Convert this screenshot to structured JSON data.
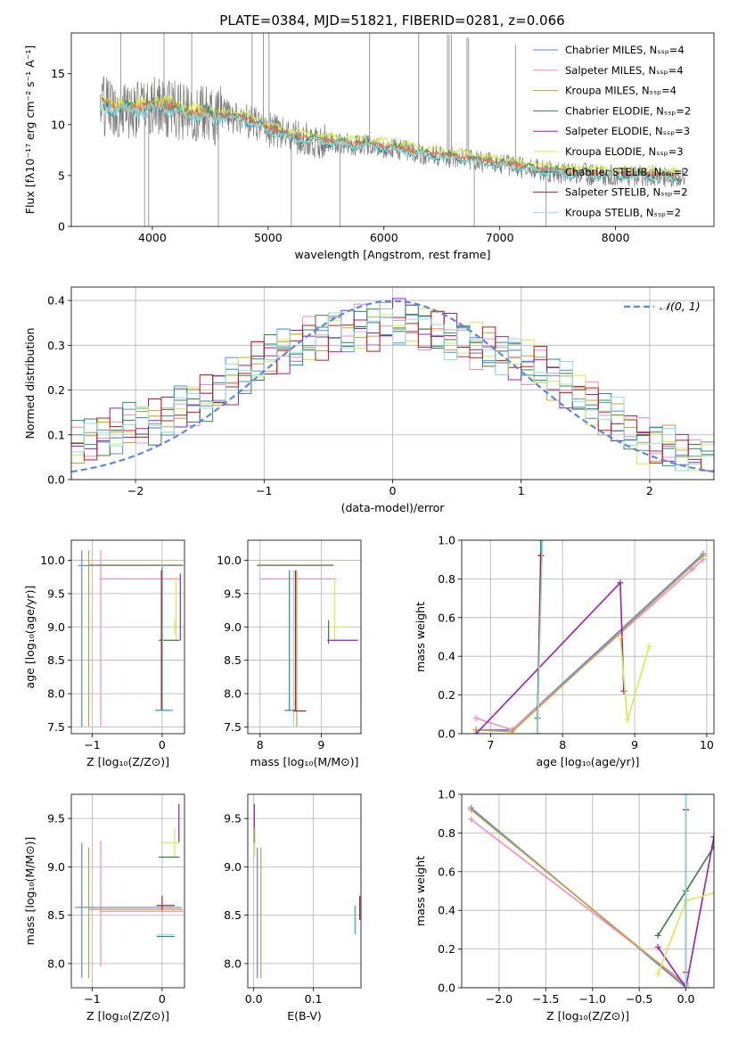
{
  "colors": {
    "chabrier_miles": "#5b86e5",
    "salpeter_miles": "#f08cc0",
    "kroupa_miles": "#c8a03c",
    "chabrier_elodie": "#3a7d44",
    "salpeter_elodie": "#9a1fb0",
    "kroupa_elodie": "#d4ec4e",
    "chabrier_stelib": "#2a8a8a",
    "salpeter_stelib": "#c01818",
    "kroupa_stelib": "#8fdde0",
    "data": "#7a7a7a",
    "orange": "#e8773a"
  },
  "chart_data": [
    {
      "id": "spectrum",
      "type": "line",
      "title": "PLATE=0384, MJD=51821, FIBERID=0281, z=0.066",
      "xlabel": "wavelength [Angstrom, rest frame]",
      "ylabel": "Flux [fλ10⁻¹⁷ erg cm⁻² s⁻¹ A⁻¹]",
      "xlim": [
        3300,
        8850
      ],
      "ylim": [
        0,
        19
      ],
      "xticks": [
        "4000",
        "5000",
        "6000",
        "7000",
        "8000"
      ],
      "yticks": [
        "0",
        "5",
        "10",
        "15"
      ],
      "legend_loc": "upper-right",
      "legend": [
        "Chabrier MILES, Nₛₛₚ=4",
        "Salpeter MILES, Nₛₛₚ=4",
        "Kroupa MILES, Nₛₛₚ=4",
        "Chabrier ELODIE, Nₛₛₚ=2",
        "Salpeter ELODIE, Nₛₛₚ=3",
        "Kroupa ELODIE, Nₛₛₚ=3",
        "Chabrier STELIB, Nₛₛₚ=2",
        "Salpeter STELIB, Nₛₛₚ=2",
        "Kroupa STELIB, Nₛₛₚ=2"
      ],
      "continuum": {
        "x": [
          3550,
          3700,
          3900,
          4100,
          4300,
          4500,
          4800,
          5000,
          5200,
          5500,
          5800,
          6000,
          6300,
          6600,
          6800,
          7000,
          7300,
          7600,
          8000,
          8300,
          8600
        ],
        "y": [
          12.0,
          11.5,
          11.5,
          11.8,
          11.0,
          11.0,
          10.5,
          9.5,
          8.8,
          8.3,
          8.0,
          7.8,
          7.2,
          6.8,
          6.4,
          6.1,
          5.6,
          5.2,
          5.0,
          5.0,
          4.7
        ]
      },
      "lines_up": [
        3727,
        4101,
        4340,
        4861,
        4959,
        5007,
        5876,
        6300,
        6548,
        6563,
        6583,
        6717,
        6731,
        7136
      ],
      "lines_down": [
        3933,
        3968,
        4570,
        5200,
        5620,
        6780,
        7400
      ]
    },
    {
      "id": "residuals",
      "type": "bar",
      "xlabel": "(data-model)/error",
      "ylabel": "Normed distribution",
      "xlim": [
        -2.5,
        2.5
      ],
      "ylim": [
        0,
        0.43
      ],
      "xticks": [
        "−2",
        "−1",
        "0",
        "1",
        "2"
      ],
      "yticks": [
        "0.0",
        "0.1",
        "0.2",
        "0.3",
        "0.4"
      ],
      "legend": [
        "𝒩(0, 1)"
      ],
      "legend_loc": "upper-right",
      "bin_edges": [
        -2.5,
        2.5
      ],
      "hist_base": [
        0.08,
        0.09,
        0.1,
        0.11,
        0.12,
        0.13,
        0.13,
        0.14,
        0.16,
        0.17,
        0.18,
        0.2,
        0.22,
        0.24,
        0.26,
        0.28,
        0.29,
        0.3,
        0.31,
        0.32,
        0.33,
        0.33,
        0.34,
        0.34,
        0.35,
        0.35,
        0.35,
        0.34,
        0.33,
        0.32,
        0.31,
        0.3,
        0.29,
        0.28,
        0.27,
        0.26,
        0.25,
        0.23,
        0.21,
        0.19,
        0.17,
        0.15,
        0.13,
        0.11,
        0.09,
        0.08,
        0.07,
        0.06,
        0.05,
        0.04
      ]
    },
    {
      "id": "age_vs_Z",
      "type": "scatter",
      "xlabel": "Z [log₁₀(Z/Z⊙)]",
      "ylabel": "age  [log₁₀(age/yr)]",
      "xlim": [
        -1.3,
        0.32
      ],
      "ylim": [
        7.4,
        10.3
      ],
      "xticks": [
        "−1",
        "0"
      ],
      "yticks": [
        "7.5",
        "8.0",
        "8.5",
        "9.0",
        "9.5",
        "10.0"
      ]
    },
    {
      "id": "age_vs_mass",
      "type": "scatter",
      "xlabel": "mass [log₁₀(M/M⊙)]",
      "xlim": [
        7.8,
        9.65
      ],
      "ylim": [
        7.4,
        10.3
      ],
      "xticks": [
        "8",
        "9"
      ],
      "yticks": [
        "7.5",
        "8.0",
        "8.5",
        "9.0",
        "9.5",
        "10.0"
      ]
    },
    {
      "id": "weight_vs_age",
      "type": "line",
      "xlabel": "age  [log₁₀(age/yr)]",
      "ylabel": "mass weight",
      "xlim": [
        6.6,
        10.1
      ],
      "ylim": [
        0,
        1
      ],
      "xticks": [
        "7",
        "8",
        "9",
        "10"
      ],
      "yticks": [
        "0.0",
        "0.2",
        "0.4",
        "0.6",
        "0.8",
        "1.0"
      ],
      "series": [
        {
          "name": "Chabrier MILES",
          "x": [
            6.8,
            7.3,
            9.95
          ],
          "y": [
            0.02,
            0.02,
            0.93
          ]
        },
        {
          "name": "Salpeter MILES",
          "x": [
            6.8,
            7.3,
            9.8,
            9.95
          ],
          "y": [
            0.08,
            0.02,
            0.85,
            0.9
          ]
        },
        {
          "name": "Kroupa MILES",
          "x": [
            6.8,
            7.3,
            9.95
          ],
          "y": [
            0.02,
            0.01,
            0.92
          ]
        },
        {
          "name": "Chabrier ELODIE",
          "x": [
            7.65,
            7.7
          ],
          "y": [
            0.08,
            0.92
          ]
        },
        {
          "name": "Salpeter ELODIE",
          "x": [
            6.8,
            8.8,
            8.85
          ],
          "y": [
            0.0,
            0.78,
            0.22
          ]
        },
        {
          "name": "Kroupa ELODIE",
          "x": [
            8.8,
            8.9,
            9.2
          ],
          "y": [
            0.5,
            0.07,
            0.45
          ]
        },
        {
          "name": "Chabrier STELIB",
          "x": [
            7.65,
            7.7
          ],
          "y": [
            0.0,
            1.0
          ]
        },
        {
          "name": "Salpeter STELIB",
          "x": [
            7.65,
            7.7
          ],
          "y": [
            0.0,
            0.92
          ]
        },
        {
          "name": "Kroupa STELIB",
          "x": [
            7.65,
            7.72
          ],
          "y": [
            0.0,
            1.0
          ]
        }
      ]
    },
    {
      "id": "mass_vs_Z",
      "type": "scatter",
      "xlabel": "Z [log₁₀(Z/Z⊙)]",
      "ylabel": "mass [log₁₀(M/M⊙)]",
      "xlim": [
        -1.3,
        0.32
      ],
      "ylim": [
        7.75,
        9.75
      ],
      "xticks": [
        "−1",
        "0"
      ],
      "yticks": [
        "8.0",
        "8.5",
        "9.0",
        "9.5"
      ]
    },
    {
      "id": "mass_vs_ebv",
      "type": "scatter",
      "xlabel": "E(B-V)",
      "xlim": [
        -0.01,
        0.18
      ],
      "ylim": [
        7.75,
        9.75
      ],
      "xticks": [
        "0.0",
        "0.1"
      ],
      "yticks": [
        "8.0",
        "8.5",
        "9.0",
        "9.5"
      ]
    },
    {
      "id": "weight_vs_Z",
      "type": "line",
      "xlabel": "Z [log₁₀(Z/Z⊙)]",
      "ylabel": "mass weight",
      "xlim": [
        -2.4,
        0.3
      ],
      "ylim": [
        0,
        1
      ],
      "xticks": [
        "−2.0",
        "−1.5",
        "−1.0",
        "−0.5",
        "0.0"
      ],
      "yticks": [
        "0.0",
        "0.2",
        "0.4",
        "0.6",
        "0.8",
        "1.0"
      ],
      "series": [
        {
          "name": "Chabrier MILES",
          "x": [
            -2.3,
            0.0
          ],
          "y": [
            0.93,
            0.0
          ]
        },
        {
          "name": "Salpeter MILES",
          "x": [
            -2.3,
            0.0
          ],
          "y": [
            0.87,
            0.02
          ]
        },
        {
          "name": "Kroupa MILES",
          "x": [
            -2.3,
            0.0
          ],
          "y": [
            0.92,
            0.01
          ]
        },
        {
          "name": "Chabrier ELODIE",
          "x": [
            -0.3,
            0.0,
            0.3
          ],
          "y": [
            0.27,
            0.5,
            0.73
          ]
        },
        {
          "name": "Salpeter ELODIE",
          "x": [
            -0.3,
            0.0,
            0.3
          ],
          "y": [
            0.21,
            0.0,
            0.78
          ]
        },
        {
          "name": "Kroupa ELODIE",
          "x": [
            -0.3,
            0.0,
            0.3
          ],
          "y": [
            0.07,
            0.45,
            0.49
          ]
        },
        {
          "name": "Chabrier STELIB",
          "x": [
            0.0,
            0.0
          ],
          "y": [
            0.0,
            1.0
          ]
        },
        {
          "name": "Salpeter STELIB",
          "x": [
            0.0,
            0.0
          ],
          "y": [
            0.08,
            0.92
          ]
        },
        {
          "name": "Kroupa STELIB",
          "x": [
            0.0,
            0.0
          ],
          "y": [
            0.0,
            1.0
          ]
        }
      ]
    }
  ]
}
